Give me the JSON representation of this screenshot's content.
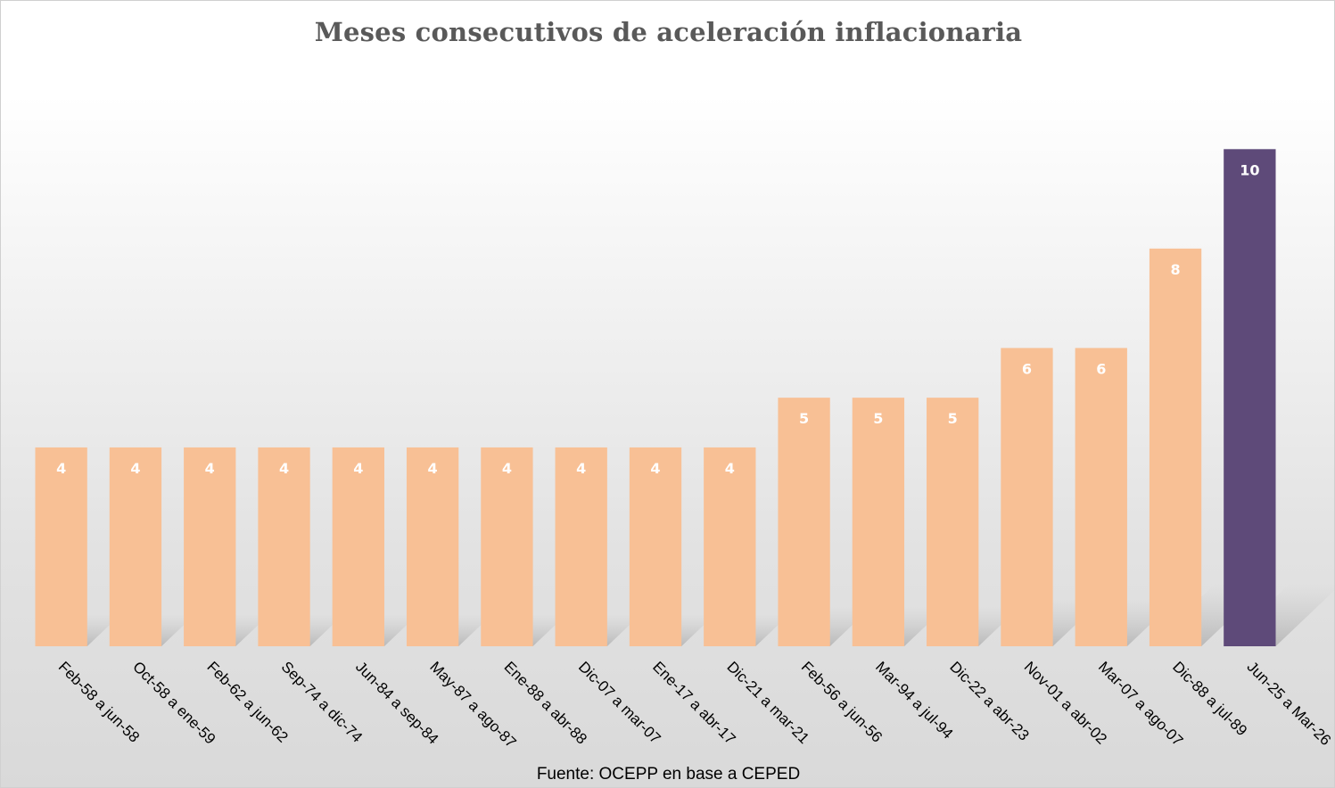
{
  "chart_data": {
    "type": "bar",
    "title": "Meses consecutivos de aceleración inflacionaria",
    "source": "Fuente: OCEPP en base a CEPED",
    "xlabel": "",
    "ylabel": "",
    "ylim": [
      0,
      10.4
    ],
    "grid": false,
    "legend": "none",
    "categories": [
      "Feb-58 a jun-58",
      "Oct-58 a ene-59",
      "Feb-62 a jun-62",
      "Sep-74 a dic-74",
      "Jun-84 a sep-84",
      "May-87 a ago-87",
      "Ene-88 a abr-88",
      "Dic-07 a mar-07",
      "Ene-17 a abr-17",
      "Dic-21 a mar-21",
      "Feb-56 a jun-56",
      "Mar-94 a jul-94",
      "Dic-22 a abr-23",
      "Nov-01 a abr-02",
      "Mar-07 a ago-07",
      "Dic-88 a jul-89",
      "Jun-25 a Mar-26"
    ],
    "values": [
      4,
      4,
      4,
      4,
      4,
      4,
      4,
      4,
      4,
      4,
      5,
      5,
      5,
      6,
      6,
      8,
      10
    ],
    "colors": {
      "default": "#f8c095",
      "highlight": "#5e4a79",
      "highlight_index": 16,
      "label": "#ffffff"
    }
  }
}
